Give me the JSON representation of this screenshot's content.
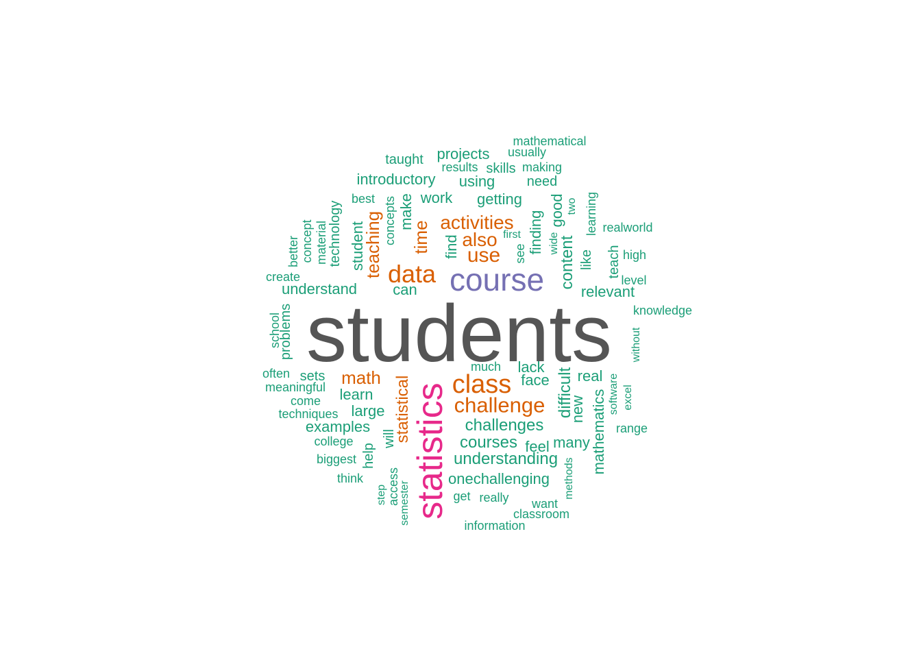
{
  "colors": {
    "c1": "#1B9E77",
    "c2": "#D95F02",
    "c3": "#7570B3",
    "c4": "#E7298A",
    "c5": "#555555"
  },
  "words": [
    {
      "text": "students",
      "color": "c5"
    },
    {
      "text": "statistics",
      "color": "c4"
    },
    {
      "text": "course",
      "color": "c3"
    },
    {
      "text": "class",
      "color": "c2"
    },
    {
      "text": "data",
      "color": "c2"
    },
    {
      "text": "challenge",
      "color": "c2"
    },
    {
      "text": "use",
      "color": "c2"
    },
    {
      "text": "also",
      "color": "c2"
    },
    {
      "text": "activities",
      "color": "c2"
    },
    {
      "text": "math",
      "color": "c2"
    },
    {
      "text": "time",
      "color": "c2"
    },
    {
      "text": "teaching",
      "color": "c2"
    },
    {
      "text": "statistical",
      "color": "c2"
    },
    {
      "text": "challenges",
      "color": "c1"
    },
    {
      "text": "courses",
      "color": "c1"
    },
    {
      "text": "understanding",
      "color": "c1"
    },
    {
      "text": "onechallenging",
      "color": "c1"
    },
    {
      "text": "difficult",
      "color": "c1"
    },
    {
      "text": "content",
      "color": "c1"
    },
    {
      "text": "face",
      "color": "c1"
    },
    {
      "text": "lack",
      "color": "c1"
    },
    {
      "text": "real",
      "color": "c1"
    },
    {
      "text": "can",
      "color": "c1"
    },
    {
      "text": "understand",
      "color": "c1"
    },
    {
      "text": "introductory",
      "color": "c1"
    },
    {
      "text": "getting",
      "color": "c1"
    },
    {
      "text": "work",
      "color": "c1"
    },
    {
      "text": "projects",
      "color": "c1"
    },
    {
      "text": "using",
      "color": "c1"
    },
    {
      "text": "learn",
      "color": "c1"
    },
    {
      "text": "large",
      "color": "c1"
    },
    {
      "text": "examples",
      "color": "c1"
    },
    {
      "text": "relevant",
      "color": "c1"
    },
    {
      "text": "mathematics",
      "color": "c1"
    },
    {
      "text": "new",
      "color": "c1"
    },
    {
      "text": "many",
      "color": "c1"
    },
    {
      "text": "feel",
      "color": "c1"
    },
    {
      "text": "find",
      "color": "c1"
    },
    {
      "text": "finding",
      "color": "c1"
    },
    {
      "text": "good",
      "color": "c1"
    },
    {
      "text": "student",
      "color": "c1"
    },
    {
      "text": "make",
      "color": "c1"
    },
    {
      "text": "technology",
      "color": "c1"
    },
    {
      "text": "sets",
      "color": "c1"
    },
    {
      "text": "help",
      "color": "c1"
    },
    {
      "text": "will",
      "color": "c1"
    },
    {
      "text": "teach",
      "color": "c1"
    },
    {
      "text": "like",
      "color": "c1"
    },
    {
      "text": "learning",
      "color": "c1"
    },
    {
      "text": "concepts",
      "color": "c1"
    },
    {
      "text": "taught",
      "color": "c1"
    },
    {
      "text": "skills",
      "color": "c1"
    },
    {
      "text": "need",
      "color": "c1"
    },
    {
      "text": "making",
      "color": "c1"
    },
    {
      "text": "usually",
      "color": "c1"
    },
    {
      "text": "mathematical",
      "color": "c1"
    },
    {
      "text": "results",
      "color": "c1"
    },
    {
      "text": "best",
      "color": "c1"
    },
    {
      "text": "material",
      "color": "c1"
    },
    {
      "text": "concept",
      "color": "c1"
    },
    {
      "text": "better",
      "color": "c1"
    },
    {
      "text": "create",
      "color": "c1"
    },
    {
      "text": "problems",
      "color": "c1"
    },
    {
      "text": "school",
      "color": "c1"
    },
    {
      "text": "often",
      "color": "c1"
    },
    {
      "text": "meaningful",
      "color": "c1"
    },
    {
      "text": "come",
      "color": "c1"
    },
    {
      "text": "techniques",
      "color": "c1"
    },
    {
      "text": "college",
      "color": "c1"
    },
    {
      "text": "biggest",
      "color": "c1"
    },
    {
      "text": "think",
      "color": "c1"
    },
    {
      "text": "step",
      "color": "c1"
    },
    {
      "text": "access",
      "color": "c1"
    },
    {
      "text": "semester",
      "color": "c1"
    },
    {
      "text": "get",
      "color": "c1"
    },
    {
      "text": "really",
      "color": "c1"
    },
    {
      "text": "information",
      "color": "c1"
    },
    {
      "text": "want",
      "color": "c1"
    },
    {
      "text": "classroom",
      "color": "c1"
    },
    {
      "text": "methods",
      "color": "c1"
    },
    {
      "text": "much",
      "color": "c1"
    },
    {
      "text": "software",
      "color": "c1"
    },
    {
      "text": "excel",
      "color": "c1"
    },
    {
      "text": "range",
      "color": "c1"
    },
    {
      "text": "first",
      "color": "c1"
    },
    {
      "text": "see",
      "color": "c1"
    },
    {
      "text": "wide",
      "color": "c1"
    },
    {
      "text": "two",
      "color": "c1"
    },
    {
      "text": "realworld",
      "color": "c1"
    },
    {
      "text": "high",
      "color": "c1"
    },
    {
      "text": "level",
      "color": "c1"
    },
    {
      "text": "knowledge",
      "color": "c1"
    },
    {
      "text": "without",
      "color": "c1"
    }
  ]
}
